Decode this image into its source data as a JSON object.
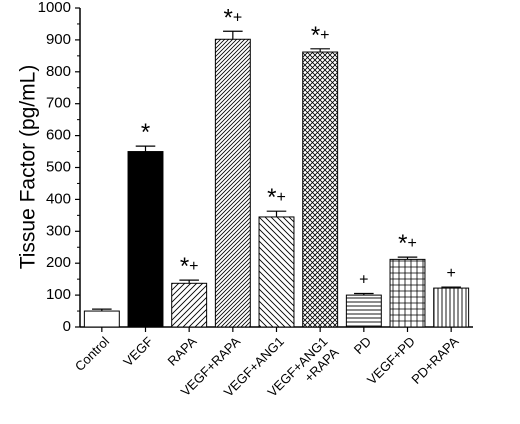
{
  "chart_data": {
    "type": "bar",
    "ylabel": "Tissue Factor (pg/mL)",
    "xlabel": "",
    "ylim": [
      0,
      1000
    ],
    "yticks": [
      "0",
      "100",
      "200",
      "300",
      "400",
      "500",
      "600",
      "700",
      "800",
      "900",
      "1000"
    ],
    "categories": [
      {
        "name": "Control",
        "lines": [
          "Control"
        ],
        "value": 50,
        "error": 6,
        "fill": "none",
        "mark": ""
      },
      {
        "name": "VEGF",
        "lines": [
          "VEGF"
        ],
        "value": 550,
        "error": 17,
        "fill": "solid",
        "mark": "*"
      },
      {
        "name": "RAPA",
        "lines": [
          "RAPA"
        ],
        "value": 137,
        "error": 10,
        "fill": "diag-right",
        "mark": "*+"
      },
      {
        "name": "VEGF+RAPA",
        "lines": [
          "VEGF+RAPA"
        ],
        "value": 902,
        "error": 25,
        "fill": "diag-right-dense",
        "mark": "*+"
      },
      {
        "name": "VEGF+ANG1",
        "lines": [
          "VEGF+ANG1"
        ],
        "value": 345,
        "error": 18,
        "fill": "diag-left",
        "mark": "*+"
      },
      {
        "name": "VEGF+ANG1 +RAPA",
        "lines": [
          "VEGF+ANG1",
          "+RAPA"
        ],
        "value": 862,
        "error": 10,
        "fill": "crosshatch-diag",
        "mark": "*+"
      },
      {
        "name": "PD",
        "lines": [
          "PD"
        ],
        "value": 100,
        "error": 5,
        "fill": "horizontal",
        "mark": "+"
      },
      {
        "name": "VEGF+PD",
        "lines": [
          "VEGF+PD"
        ],
        "value": 212,
        "error": 7,
        "fill": "grid",
        "mark": "*+"
      },
      {
        "name": "PD+RAPA",
        "lines": [
          "PD+RAPA"
        ],
        "value": 122,
        "error": 3,
        "fill": "vertical",
        "mark": "+"
      }
    ],
    "colors": {
      "bar_stroke": "#000000",
      "solid_fill": "#000000",
      "background": "#ffffff"
    }
  }
}
